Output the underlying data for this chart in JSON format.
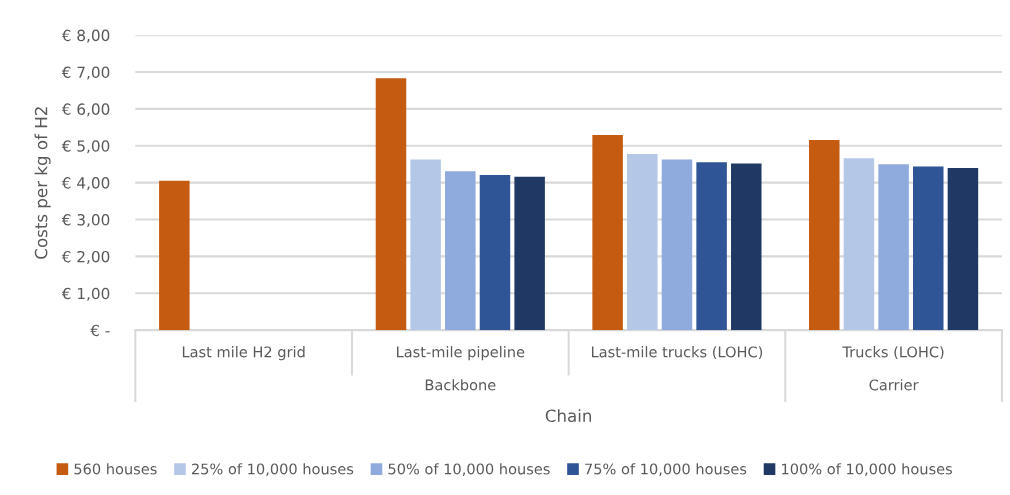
{
  "chart_data": {
    "type": "bar",
    "xlabel": "Chain",
    "ylabel": "Costs per kg of H2",
    "categories": [
      "Last mile H2 grid",
      "Last-mile pipeline",
      "Last-mile trucks (LOHC)",
      "Trucks (LOHC)"
    ],
    "series": [
      {
        "name": "560 houses",
        "color": "#c55a11",
        "values": [
          4.05,
          6.83,
          5.29,
          5.16
        ]
      },
      {
        "name": "25% of 10,000 houses",
        "color": "#b4c7e7",
        "values": [
          null,
          4.63,
          4.78,
          4.66
        ]
      },
      {
        "name": "50% of 10,000 houses",
        "color": "#8faadc",
        "values": [
          null,
          4.31,
          4.63,
          4.5
        ]
      },
      {
        "name": "75% of 10,000 houses",
        "color": "#2f5597",
        "values": [
          null,
          4.21,
          4.55,
          4.44
        ]
      },
      {
        "name": "100% of 10,000 houses",
        "color": "#203864",
        "values": [
          null,
          4.16,
          4.52,
          4.4
        ]
      }
    ],
    "ylim": [
      0,
      8
    ],
    "yticks": [
      {
        "value": 0,
        "label": "€ -"
      },
      {
        "value": 1,
        "label": "€ 1,00"
      },
      {
        "value": 2,
        "label": "€ 2,00"
      },
      {
        "value": 3,
        "label": "€ 3,00"
      },
      {
        "value": 4,
        "label": "€ 4,00"
      },
      {
        "value": 5,
        "label": "€ 5,00"
      },
      {
        "value": 6,
        "label": "€ 6,00"
      },
      {
        "value": 7,
        "label": "€ 7,00"
      },
      {
        "value": 8,
        "label": "€ 8,00"
      }
    ],
    "annotations": [
      "Backbone",
      "Carrier"
    ],
    "grid": "y",
    "legend": "bottom"
  }
}
